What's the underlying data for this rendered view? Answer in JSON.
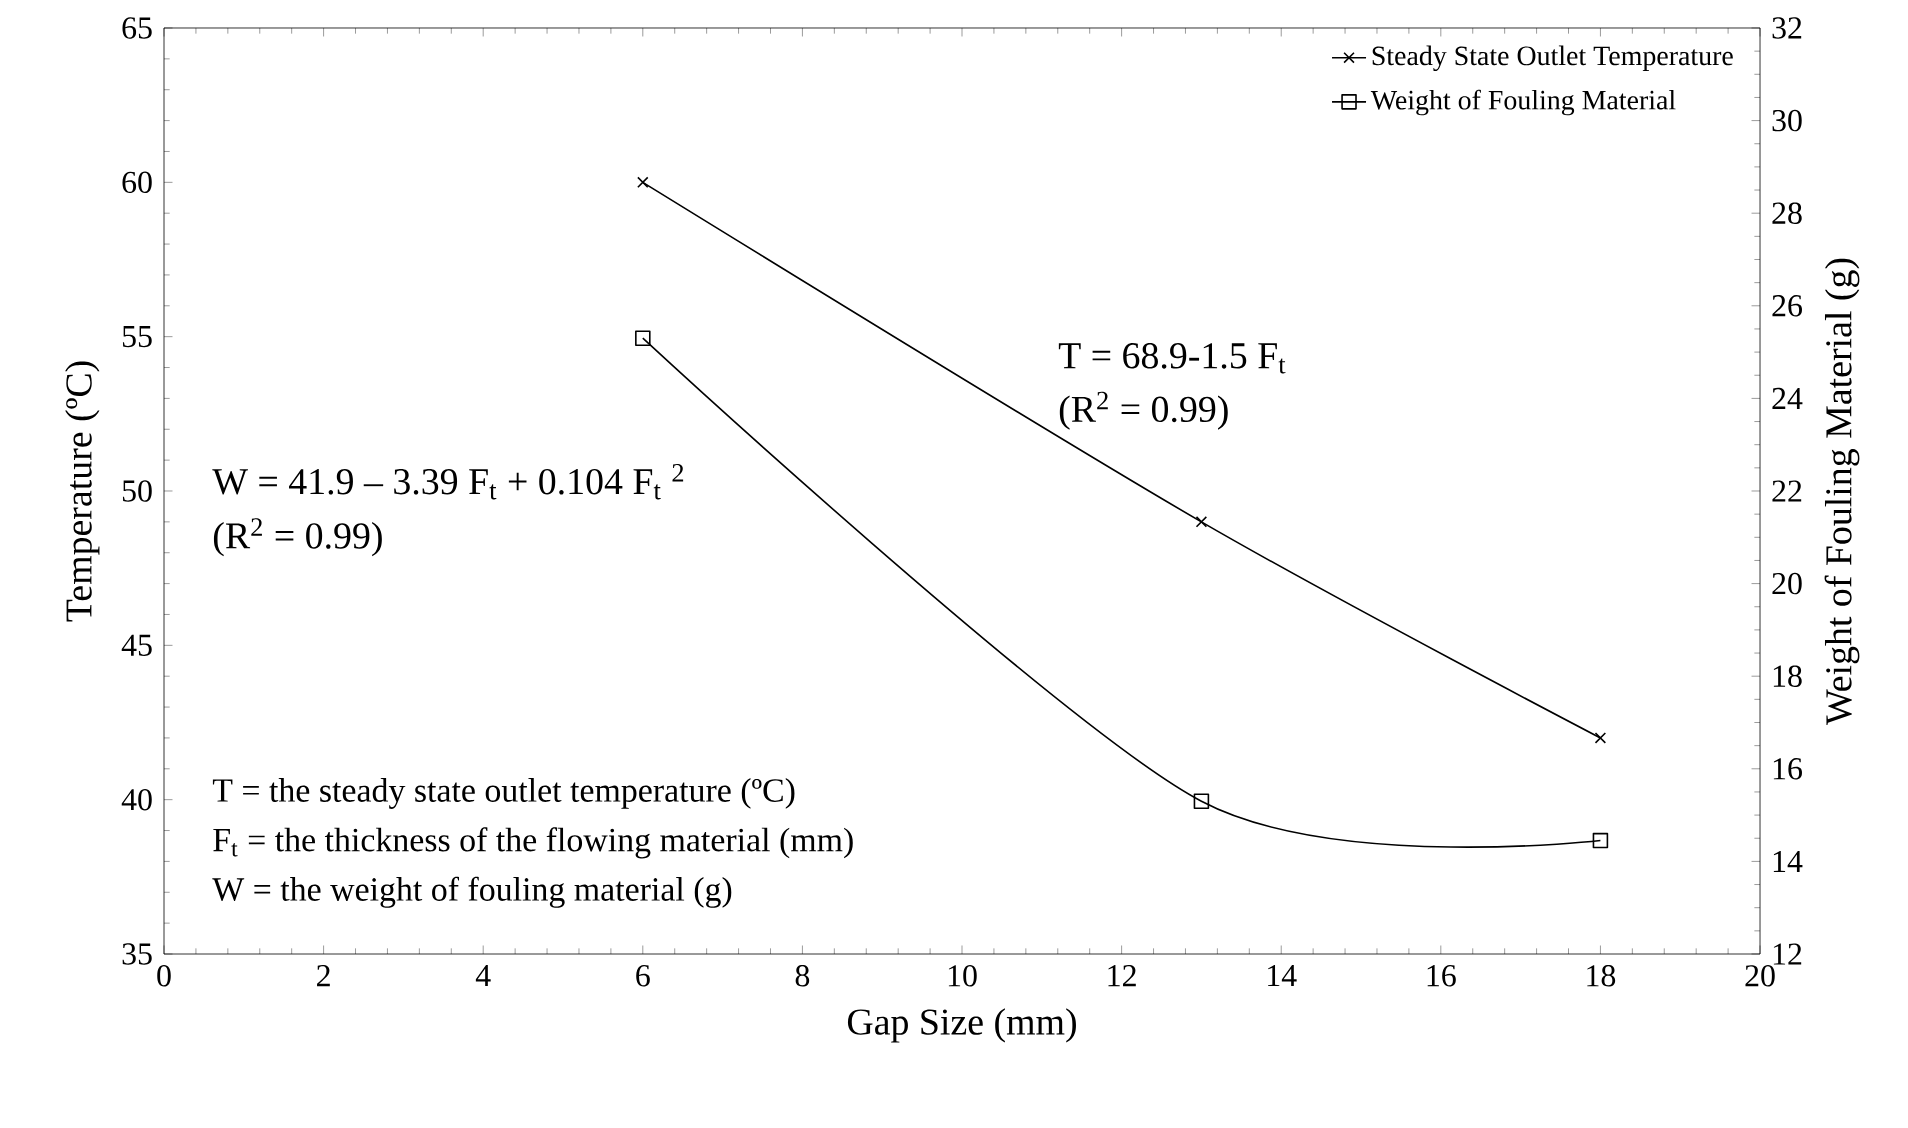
{
  "chart_data": {
    "type": "line",
    "xlabel": "Gap Size (mm)",
    "ylabel": "Temperature (ºC)",
    "y2label": "Weight of Fouling Material (g)",
    "x": [
      6,
      13,
      18
    ],
    "series": [
      {
        "name": "Steady State Outlet Temperature",
        "color": "#000000",
        "values": [
          60,
          49,
          42
        ],
        "marker": "cross"
      },
      {
        "name": "Weight of Fouling Material",
        "color": "#000000",
        "values": [
          25.3,
          15.3,
          14.45
        ],
        "marker": "square",
        "axis": "y2"
      }
    ],
    "xlim": [
      0,
      20
    ],
    "xticks": [
      0,
      2,
      4,
      6,
      8,
      10,
      12,
      14,
      16,
      18,
      20
    ],
    "ylim": [
      35,
      65
    ],
    "yticks": [
      35,
      40,
      45,
      50,
      55,
      60,
      65
    ],
    "y2lim": [
      12,
      32
    ],
    "y2ticks": [
      12,
      14,
      16,
      18,
      20,
      22,
      24,
      26,
      28,
      30,
      32
    ],
    "legend": "top right",
    "grid": false,
    "line_style": "solid",
    "annotations": [
      "T = 68.9-1.5 F$_{t}$",
      "(R$^{2}$ = 0.99)",
      "W = 41.9 – 3.39 F$_{t}$ + 0.104 F$_{t}$ $^{2}$",
      "(R$^{2}$ = 0.99)",
      "T    = the steady state outlet temperature (ºC)",
      "F$_{t}$  = the thickness of the flowing material (mm)",
      "W   = the weight of fouling material (g)"
    ]
  }
}
